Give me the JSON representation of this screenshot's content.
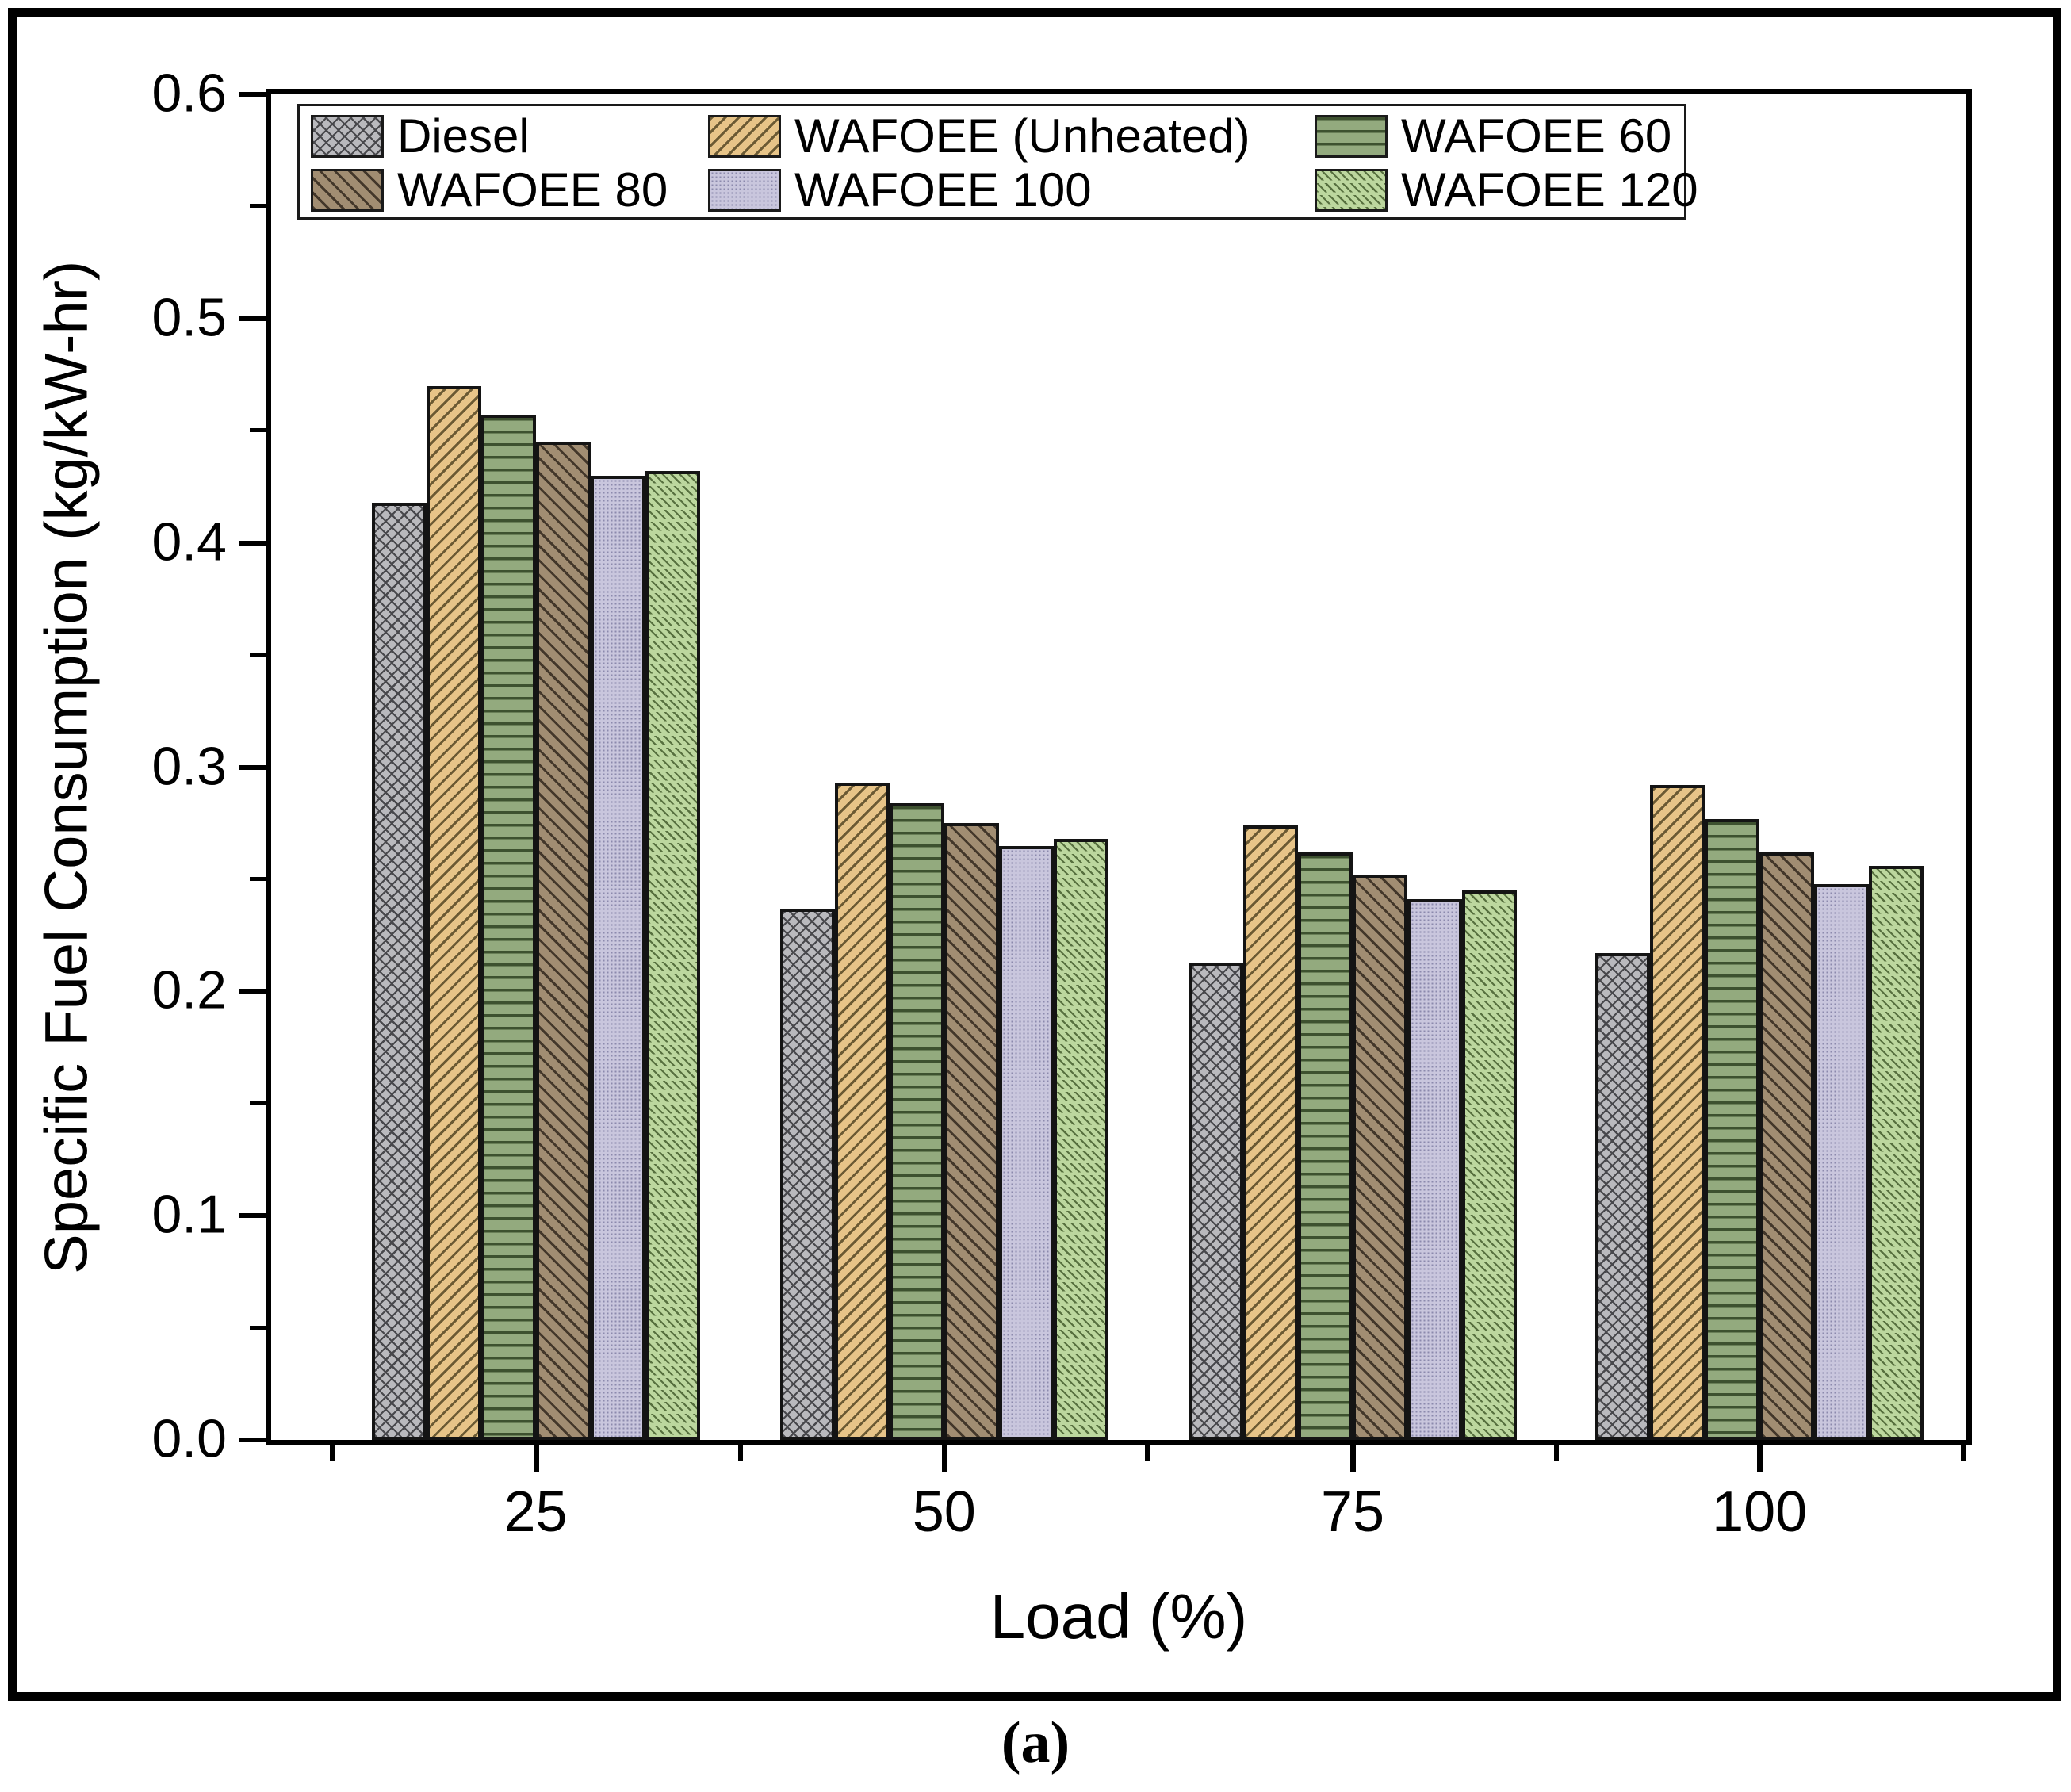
{
  "figure": {
    "panel_label": "(a)"
  },
  "chart_data": {
    "type": "bar",
    "title": "",
    "xlabel": "Load (%)",
    "ylabel": "Specific Fuel Consumption (kg/kW-hr)",
    "categories": [
      "25",
      "50",
      "75",
      "100"
    ],
    "x_tick_labels": [
      "25",
      "50",
      "75",
      "100"
    ],
    "y_tick_labels": [
      "0.0",
      "0.1",
      "0.2",
      "0.3",
      "0.4",
      "0.5",
      "0.6"
    ],
    "ylim": [
      0,
      0.6
    ],
    "y_major_step": 0.1,
    "y_minor_step": 0.05,
    "grid": false,
    "legend_position": "top-inside",
    "series": [
      {
        "name": "Diesel",
        "values": [
          0.418,
          0.237,
          0.213,
          0.217
        ],
        "fill": "#b9b9bd",
        "hatch": "cross-diagonal",
        "hatch_color": "#48484c"
      },
      {
        "name": "WAFOEE (Unheated)",
        "values": [
          0.47,
          0.293,
          0.274,
          0.292
        ],
        "fill": "#e7c488",
        "hatch": "forward-diagonal",
        "hatch_color": "#6b5a33"
      },
      {
        "name": "WAFOEE 60",
        "values": [
          0.457,
          0.284,
          0.262,
          0.277
        ],
        "fill": "#93aa7e",
        "hatch": "horizontal",
        "hatch_color": "#3d512f"
      },
      {
        "name": "WAFOEE 80",
        "values": [
          0.445,
          0.275,
          0.252,
          0.262
        ],
        "fill": "#a18d72",
        "hatch": "back-diagonal",
        "hatch_color": "#43372a"
      },
      {
        "name": "WAFOEE 100",
        "values": [
          0.43,
          0.265,
          0.241,
          0.248
        ],
        "fill": "#c9c6dd",
        "hatch": "dots",
        "hatch_color": "#8c89ad"
      },
      {
        "name": "WAFOEE 120",
        "values": [
          0.432,
          0.268,
          0.245,
          0.256
        ],
        "fill": "#bcd79e",
        "hatch": "fine-back-diagonal",
        "hatch_color": "#57703f"
      }
    ]
  }
}
